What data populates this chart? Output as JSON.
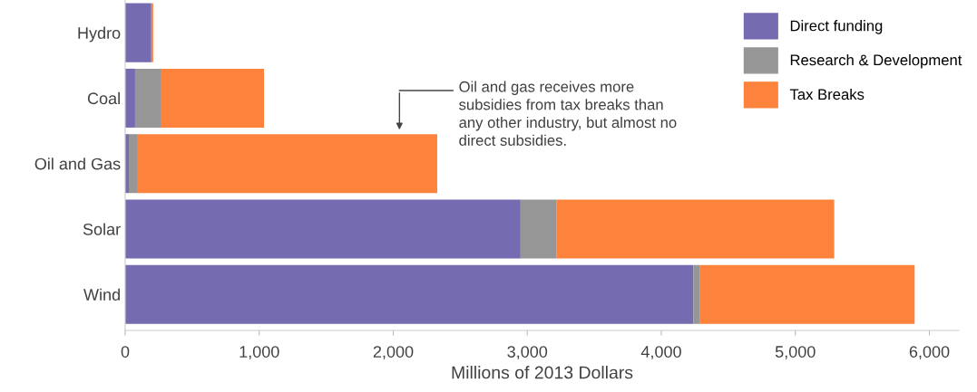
{
  "chart_data": {
    "type": "bar",
    "orientation": "horizontal",
    "stacked": true,
    "categories": [
      "Hydro",
      "Coal",
      "Oil and Gas",
      "Solar",
      "Wind"
    ],
    "series": [
      {
        "name": "Direct funding",
        "color": "#756bb1",
        "values": [
          195,
          74,
          27,
          2950,
          4240
        ]
      },
      {
        "name": "Research & Development",
        "color": "#969696",
        "values": [
          null,
          196,
          61,
          270,
          45
        ]
      },
      {
        "name": "Tax Breaks",
        "color": "#fd833d",
        "values": [
          14,
          766,
          2240,
          2070,
          1605
        ]
      }
    ],
    "xlabel": "Millions of 2013 Dollars",
    "xlim": [
      0,
      6220
    ],
    "xticks": [
      0,
      {
        "value": 1000,
        "label": "1,000"
      },
      {
        "value": 2000,
        "label": "2,000"
      },
      {
        "value": 3000,
        "label": "3,000"
      },
      {
        "value": 4000,
        "label": "4,000"
      },
      {
        "value": 5000,
        "label": "5,000"
      },
      {
        "value": 6000,
        "label": "6,000"
      }
    ],
    "annotations": [
      "Oil and gas receives more\nsubsidies from tax breaks than\nany other industry, but almost no\ndirect subsidies."
    ],
    "legend": "top right",
    "grid": false
  }
}
